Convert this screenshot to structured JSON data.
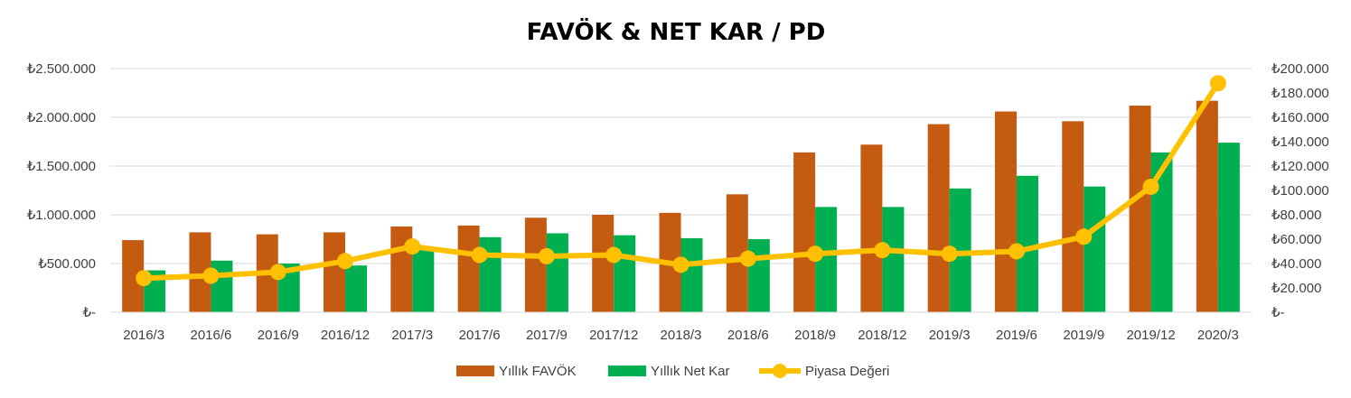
{
  "chart_data": {
    "type": "bar",
    "title": "FAVÖK & NET KAR / PD",
    "categories": [
      "2016/3",
      "2016/6",
      "2016/9",
      "2016/12",
      "2017/3",
      "2017/6",
      "2017/9",
      "2017/12",
      "2018/3",
      "2018/6",
      "2018/9",
      "2018/12",
      "2019/3",
      "2019/6",
      "2019/9",
      "2019/12",
      "2020/3"
    ],
    "series": [
      {
        "name": "Yıllık FAVÖK",
        "type": "bar",
        "axis": "left",
        "color": "#C55A11",
        "values": [
          740000,
          820000,
          800000,
          820000,
          880000,
          890000,
          970000,
          1000000,
          1020000,
          1210000,
          1640000,
          1720000,
          1930000,
          2060000,
          1960000,
          2120000,
          2170000
        ]
      },
      {
        "name": "Yıllık Net Kar",
        "type": "bar",
        "axis": "left",
        "color": "#00B050",
        "values": [
          430000,
          530000,
          500000,
          480000,
          640000,
          770000,
          810000,
          790000,
          760000,
          750000,
          1080000,
          1080000,
          1270000,
          1400000,
          1290000,
          1640000,
          1740000
        ]
      },
      {
        "name": "Piyasa Değeri",
        "type": "line",
        "axis": "right",
        "color": "#FFC000",
        "values": [
          28000,
          30000,
          33000,
          42000,
          54000,
          47000,
          46000,
          47000,
          39000,
          44000,
          48000,
          51000,
          48000,
          50000,
          62000,
          103000,
          188000
        ]
      }
    ],
    "yleft": {
      "min": 0,
      "max": 2500000,
      "ticks": [
        "₺-",
        "₺500.000",
        "₺1.000.000",
        "₺1.500.000",
        "₺2.000.000",
        "₺2.500.000"
      ]
    },
    "yright": {
      "min": 0,
      "max": 200000,
      "ticks": [
        "₺-",
        "₺20.000",
        "₺40.000",
        "₺60.000",
        "₺80.000",
        "₺100.000",
        "₺120.000",
        "₺140.000",
        "₺160.000",
        "₺180.000",
        "₺200.000"
      ]
    },
    "grid": true,
    "legend": "bottom"
  }
}
